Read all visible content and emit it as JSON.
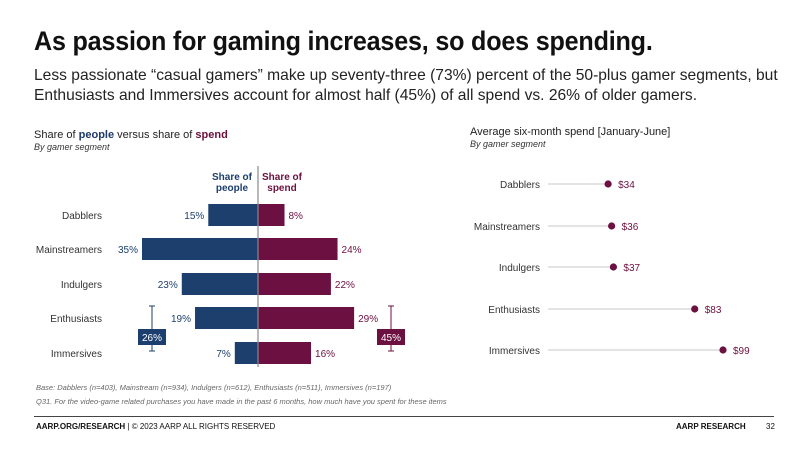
{
  "header": {
    "title": "As passion for gaming increases, so does spending.",
    "subtitle": "Less passionate “casual gamers” make up seventy-three (73%) percent of the 50-plus gamer segments, but Enthusiasts and Immersives account for almost half (45%) of all spend vs. 26% of older gamers."
  },
  "left_panel": {
    "heading_prefix": "Share of ",
    "heading_people": "people",
    "heading_mid": " versus share of ",
    "heading_spend": "spend",
    "subheading": "By gamer segment"
  },
  "right_panel": {
    "heading": "Average six-month spend [January-June]",
    "subheading": "By gamer segment"
  },
  "colors": {
    "people": "#1c3f6e",
    "spend": "#6b1040",
    "divider": "#8a8a8a",
    "lollipop_line": "#d2d2d2"
  },
  "chart_data": [
    {
      "type": "bar",
      "title": "Share of people versus share of spend",
      "categories": [
        "Dabblers",
        "Mainstreamers",
        "Indulgers",
        "Enthusiasts",
        "Immersives"
      ],
      "series": [
        {
          "name": "Share of people",
          "values": [
            15,
            35,
            23,
            19,
            7
          ],
          "labels": [
            "15%",
            "35%",
            "23%",
            "19%",
            "7%"
          ]
        },
        {
          "name": "Share of spend",
          "values": [
            8,
            24,
            22,
            29,
            16
          ],
          "labels": [
            "8%",
            "24%",
            "22%",
            "29%",
            "16%"
          ]
        }
      ],
      "column_headers": {
        "people": "Share of people",
        "spend": "Share of spend"
      },
      "bracket_totals": {
        "people": "26%",
        "spend": "45%"
      },
      "xlim": [
        0,
        35
      ]
    },
    {
      "type": "scatter",
      "title": "Average six-month spend [January-June]",
      "categories": [
        "Dabblers",
        "Mainstreamers",
        "Indulgers",
        "Enthusiasts",
        "Immersives"
      ],
      "values": [
        34,
        36,
        37,
        83,
        99
      ],
      "labels": [
        "$34",
        "$36",
        "$37",
        "$83",
        "$99"
      ],
      "xlim": [
        0,
        99
      ]
    }
  ],
  "notes": {
    "base": "Base: Dabblers (n=403), Mainstream (n=934), Indulgers (n=612), Enthusiasts (n=511), Immersives (n=197)",
    "question": "Q31. For the video-game related purchases you have made in the past 6 months, how much have you spent for these items"
  },
  "footer": {
    "left_bold": "AARP.ORG/RESEARCH",
    "left_rest": " | © 2023 AARP ALL RIGHTS RESERVED",
    "right": "AARP RESEARCH",
    "page": "32"
  }
}
